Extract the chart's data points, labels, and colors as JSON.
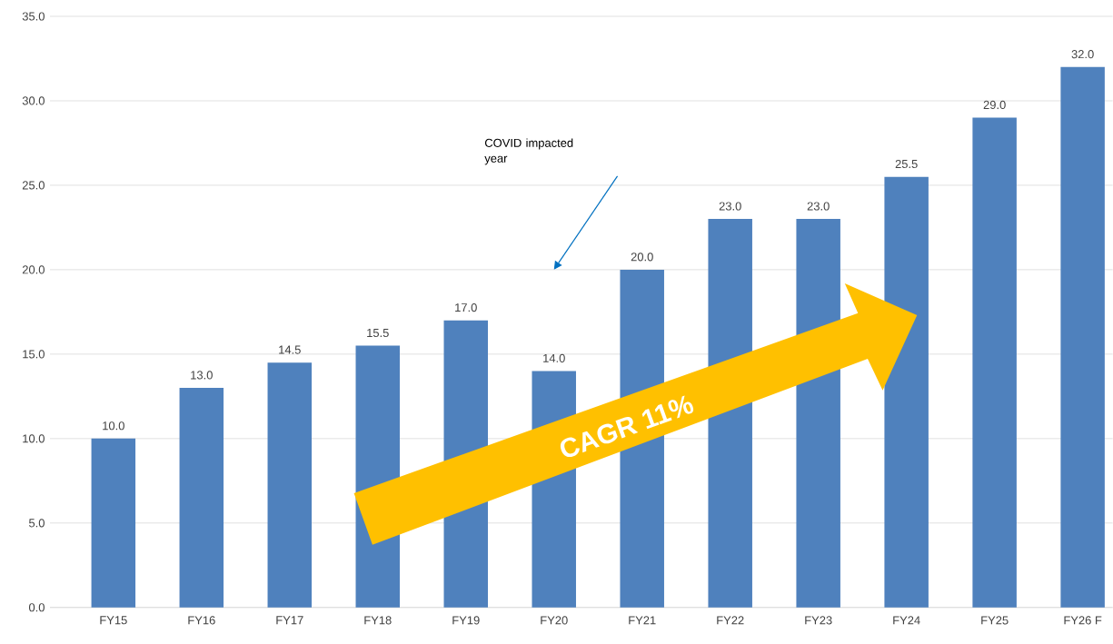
{
  "chart_data": {
    "type": "bar",
    "categories": [
      "FY15",
      "FY16",
      "FY17",
      "FY18",
      "FY19",
      "FY20",
      "FY21",
      "FY22",
      "FY23",
      "FY24",
      "FY25",
      "FY26 F"
    ],
    "values": [
      10.0,
      13.0,
      14.5,
      15.5,
      17.0,
      14.0,
      20.0,
      23.0,
      23.0,
      25.5,
      29.0,
      32.0
    ],
    "value_labels": [
      "10.0",
      "13.0",
      "14.5",
      "15.5",
      "17.0",
      "14.0",
      "20.0",
      "23.0",
      "23.0",
      "25.5",
      "29.0",
      "32.0"
    ],
    "color": "#4f81bd",
    "ylim": [
      0,
      35
    ],
    "yticks": [
      {
        "value": 0,
        "label": "0.0"
      },
      {
        "value": 5,
        "label": "5.0"
      },
      {
        "value": 10,
        "label": "10.0"
      },
      {
        "value": 15,
        "label": "15.0"
      },
      {
        "value": 20,
        "label": "20.0"
      },
      {
        "value": 25,
        "label": "25.0"
      },
      {
        "value": 30,
        "label": "30.0"
      },
      {
        "value": 35,
        "label": "35.0"
      }
    ],
    "grid": "y",
    "annotations": [
      "COVID impacted year",
      "CAGR 11%"
    ]
  }
}
